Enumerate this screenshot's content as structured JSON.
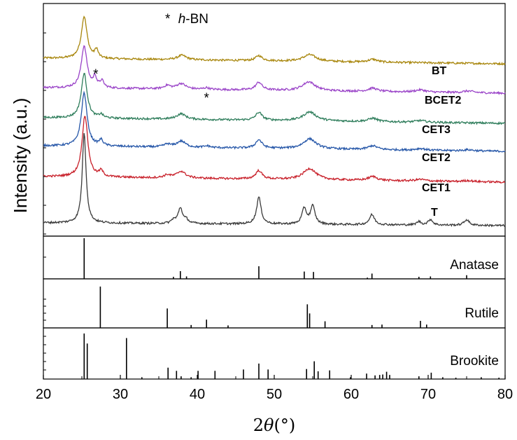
{
  "chart_data": {
    "type": "line",
    "xlabel_prefix": "2",
    "xlabel_theta": "θ",
    "xlabel_suffix": "(°)",
    "ylabel": "Intensity (a.u.)",
    "xlim": [
      20,
      80
    ],
    "xticks": [
      "20",
      "30",
      "40",
      "50",
      "60",
      "70",
      "80"
    ],
    "legend_note": {
      "star": "*",
      "italic": "h",
      "rest": "-BN"
    },
    "series": [
      {
        "name": "BT",
        "color": "#a8860c",
        "start": 0.2,
        "end": 0.1,
        "peaks": [
          [
            25.3,
            0.75,
            0.45
          ],
          [
            26.9,
            0.15,
            0.25
          ],
          [
            38.0,
            0.08,
            0.7
          ],
          [
            48.0,
            0.09,
            0.5
          ],
          [
            54.6,
            0.12,
            1.0
          ],
          [
            62.8,
            0.05,
            0.7
          ]
        ]
      },
      {
        "name": "BCET2",
        "color": "#9a44c8",
        "start": 0.2,
        "end": 0.1,
        "peaks": [
          [
            25.3,
            0.75,
            0.45
          ],
          [
            26.7,
            0.18,
            0.25
          ],
          [
            27.6,
            0.12,
            0.3
          ],
          [
            36.1,
            0.06,
            0.5
          ],
          [
            37.9,
            0.1,
            0.7
          ],
          [
            41.2,
            0.03,
            0.4
          ],
          [
            48.0,
            0.14,
            0.5
          ],
          [
            54.5,
            0.16,
            1.0
          ],
          [
            62.8,
            0.06,
            0.7
          ],
          [
            69.0,
            0.04,
            0.8
          ],
          [
            75.2,
            0.03,
            0.8
          ]
        ]
      },
      {
        "name": "CET3",
        "color": "#2e7d5b",
        "start": 0.2,
        "end": 0.1,
        "peaks": [
          [
            25.3,
            0.8,
            0.45
          ],
          [
            27.5,
            0.06,
            0.3
          ],
          [
            37.9,
            0.1,
            0.7
          ],
          [
            48.0,
            0.14,
            0.5
          ],
          [
            54.6,
            0.16,
            1.0
          ],
          [
            62.8,
            0.06,
            0.7
          ],
          [
            69.0,
            0.03,
            0.8
          ]
        ]
      },
      {
        "name": "CET2",
        "color": "#2556a8",
        "start": 0.2,
        "end": 0.1,
        "peaks": [
          [
            25.3,
            0.95,
            0.45
          ],
          [
            27.5,
            0.1,
            0.3
          ],
          [
            36.1,
            0.05,
            0.5
          ],
          [
            37.9,
            0.11,
            0.7
          ],
          [
            41.3,
            0.03,
            0.4
          ],
          [
            48.0,
            0.15,
            0.5
          ],
          [
            54.6,
            0.18,
            1.0
          ],
          [
            62.8,
            0.07,
            0.7
          ],
          [
            69.0,
            0.03,
            0.8
          ],
          [
            75.2,
            0.02,
            0.8
          ]
        ]
      },
      {
        "name": "CET1",
        "color": "#c8202a",
        "start": 0.2,
        "end": 0.1,
        "peaks": [
          [
            25.4,
            1.1,
            0.45
          ],
          [
            27.5,
            0.1,
            0.3
          ],
          [
            36.1,
            0.05,
            0.5
          ],
          [
            37.9,
            0.12,
            0.7
          ],
          [
            48.0,
            0.15,
            0.5
          ],
          [
            54.6,
            0.2,
            1.0
          ],
          [
            62.8,
            0.07,
            0.7
          ],
          [
            69.0,
            0.03,
            0.8
          ],
          [
            75.2,
            0.02,
            0.8
          ]
        ]
      },
      {
        "name": "T",
        "color": "#3a3a3a",
        "start": 0.05,
        "end": 0.0,
        "peaks": [
          [
            25.3,
            1.6,
            0.3
          ],
          [
            36.9,
            0.06,
            0.3
          ],
          [
            37.8,
            0.28,
            0.35
          ],
          [
            38.6,
            0.06,
            0.3
          ],
          [
            48.0,
            0.48,
            0.35
          ],
          [
            53.9,
            0.28,
            0.35
          ],
          [
            55.0,
            0.32,
            0.35
          ],
          [
            62.7,
            0.18,
            0.4
          ],
          [
            68.8,
            0.06,
            0.35
          ],
          [
            70.3,
            0.1,
            0.35
          ],
          [
            75.0,
            0.1,
            0.4
          ]
        ]
      }
    ],
    "reference_patterns": [
      {
        "name": "Anatase",
        "lines": [
          [
            25.3,
            1.0
          ],
          [
            36.9,
            0.05
          ],
          [
            37.8,
            0.19
          ],
          [
            38.6,
            0.06
          ],
          [
            48.0,
            0.31
          ],
          [
            53.9,
            0.18
          ],
          [
            55.1,
            0.17
          ],
          [
            62.1,
            0.03
          ],
          [
            62.7,
            0.13
          ],
          [
            68.8,
            0.05
          ],
          [
            70.3,
            0.06
          ],
          [
            75.0,
            0.09
          ]
        ]
      },
      {
        "name": "Rutile",
        "lines": [
          [
            27.4,
            1.0
          ],
          [
            36.1,
            0.47
          ],
          [
            39.2,
            0.07
          ],
          [
            41.2,
            0.2
          ],
          [
            44.0,
            0.06
          ],
          [
            54.3,
            0.57
          ],
          [
            54.6,
            0.35
          ],
          [
            56.6,
            0.16
          ],
          [
            62.7,
            0.07
          ],
          [
            64.0,
            0.08
          ],
          [
            69.0,
            0.17
          ],
          [
            69.8,
            0.08
          ]
        ]
      },
      {
        "name": "Brookite",
        "lines": [
          [
            25.3,
            1.0
          ],
          [
            25.7,
            0.78
          ],
          [
            30.8,
            0.9
          ],
          [
            32.8,
            0.04
          ],
          [
            36.2,
            0.25
          ],
          [
            37.3,
            0.18
          ],
          [
            37.9,
            0.06
          ],
          [
            39.2,
            0.04
          ],
          [
            40.1,
            0.18
          ],
          [
            42.3,
            0.18
          ],
          [
            46.0,
            0.21
          ],
          [
            48.0,
            0.34
          ],
          [
            49.2,
            0.21
          ],
          [
            54.2,
            0.22
          ],
          [
            55.2,
            0.39
          ],
          [
            55.7,
            0.17
          ],
          [
            57.2,
            0.19
          ],
          [
            59.9,
            0.04
          ],
          [
            62.0,
            0.12
          ],
          [
            63.1,
            0.08
          ],
          [
            63.7,
            0.09
          ],
          [
            64.1,
            0.1
          ],
          [
            64.6,
            0.16
          ],
          [
            65.0,
            0.09
          ],
          [
            68.8,
            0.06
          ],
          [
            70.4,
            0.14
          ],
          [
            71.9,
            0.04
          ],
          [
            73.6,
            0.03
          ],
          [
            76.9,
            0.04
          ],
          [
            79.2,
            0.03
          ]
        ]
      }
    ],
    "markers": [
      {
        "text": "*",
        "x": 26.8
      },
      {
        "text": "*",
        "x": 41.2
      }
    ]
  }
}
